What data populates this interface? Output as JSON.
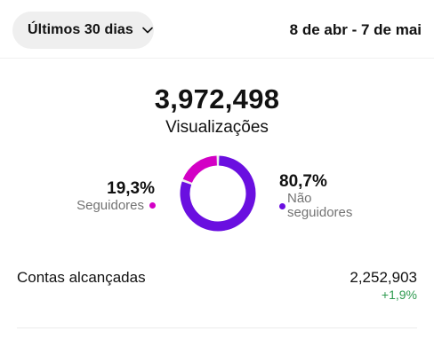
{
  "header": {
    "range_selector": "Últimos 30 dias",
    "date_range": "8 de abr - 7 de mai"
  },
  "summary": {
    "total": "3,972,498",
    "metric": "Visualizações"
  },
  "chart_data": {
    "type": "pie",
    "categories": [
      "Seguidores",
      "Não seguidores"
    ],
    "values": [
      19.3,
      80.7
    ],
    "colors": [
      "#d300c5",
      "#6a0fe0"
    ]
  },
  "breakdown": {
    "followers": {
      "percent": "19,3%",
      "label": "Seguidores",
      "color": "#d300c5"
    },
    "non_followers": {
      "percent": "80,7%",
      "label": "Não seguidores",
      "color": "#6a0fe0"
    }
  },
  "reach": {
    "label": "Contas alcançadas",
    "value": "2,252,903",
    "change": "+1,9%"
  },
  "icons": {
    "range_selector": "chevron-down-icon"
  }
}
